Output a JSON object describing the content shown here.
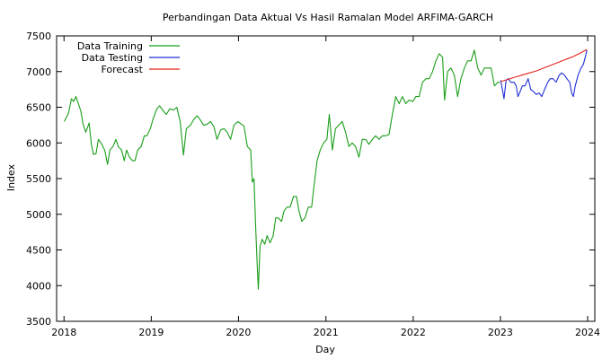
{
  "chart_data": {
    "type": "line",
    "title": "Perbandingan Data Aktual Vs Hasil Ramalan Model ARFIMA-GARCH",
    "xlabel": "Day",
    "ylabel": "Index",
    "xlim": [
      "2017-12-01",
      "2024-01-31"
    ],
    "ylim": [
      3500,
      7500
    ],
    "x_ticks": [
      "2018",
      "2019",
      "2020",
      "2021",
      "2022",
      "2023",
      "2024"
    ],
    "y_ticks": [
      "3500",
      "4000",
      "4500",
      "5000",
      "5500",
      "6000",
      "6500",
      "7000",
      "7500"
    ],
    "legend_position": "top-left",
    "grid": false,
    "series": [
      {
        "name": "Data Training",
        "color": "#1a9e1a",
        "points": [
          [
            "2018-01-02",
            6300
          ],
          [
            "2018-01-10",
            6350
          ],
          [
            "2018-01-20",
            6420
          ],
          [
            "2018-02-01",
            6620
          ],
          [
            "2018-02-10",
            6580
          ],
          [
            "2018-02-20",
            6650
          ],
          [
            "2018-03-01",
            6560
          ],
          [
            "2018-03-12",
            6450
          ],
          [
            "2018-03-22",
            6260
          ],
          [
            "2018-04-02",
            6150
          ],
          [
            "2018-04-16",
            6280
          ],
          [
            "2018-04-25",
            5990
          ],
          [
            "2018-05-04",
            5840
          ],
          [
            "2018-05-15",
            5850
          ],
          [
            "2018-05-25",
            6050
          ],
          [
            "2018-06-05",
            6000
          ],
          [
            "2018-06-20",
            5900
          ],
          [
            "2018-07-02",
            5700
          ],
          [
            "2018-07-12",
            5900
          ],
          [
            "2018-07-25",
            5950
          ],
          [
            "2018-08-06",
            6050
          ],
          [
            "2018-08-16",
            5950
          ],
          [
            "2018-08-30",
            5900
          ],
          [
            "2018-09-10",
            5750
          ],
          [
            "2018-09-20",
            5900
          ],
          [
            "2018-10-02",
            5800
          ],
          [
            "2018-10-15",
            5750
          ],
          [
            "2018-10-25",
            5750
          ],
          [
            "2018-11-05",
            5900
          ],
          [
            "2018-11-20",
            5950
          ],
          [
            "2018-12-03",
            6100
          ],
          [
            "2018-12-14",
            6100
          ],
          [
            "2018-12-28",
            6200
          ],
          [
            "2019-01-10",
            6350
          ],
          [
            "2019-01-25",
            6480
          ],
          [
            "2019-02-05",
            6520
          ],
          [
            "2019-02-20",
            6450
          ],
          [
            "2019-03-05",
            6400
          ],
          [
            "2019-03-20",
            6480
          ],
          [
            "2019-04-03",
            6460
          ],
          [
            "2019-04-18",
            6500
          ],
          [
            "2019-05-02",
            6300
          ],
          [
            "2019-05-16",
            5830
          ],
          [
            "2019-05-28",
            6200
          ],
          [
            "2019-06-14",
            6250
          ],
          [
            "2019-06-28",
            6330
          ],
          [
            "2019-07-12",
            6380
          ],
          [
            "2019-07-26",
            6320
          ],
          [
            "2019-08-08",
            6250
          ],
          [
            "2019-08-22",
            6260
          ],
          [
            "2019-09-06",
            6300
          ],
          [
            "2019-09-20",
            6230
          ],
          [
            "2019-10-03",
            6050
          ],
          [
            "2019-10-18",
            6180
          ],
          [
            "2019-11-01",
            6200
          ],
          [
            "2019-11-15",
            6150
          ],
          [
            "2019-11-29",
            6050
          ],
          [
            "2019-12-13",
            6250
          ],
          [
            "2019-12-30",
            6300
          ],
          [
            "2020-01-10",
            6270
          ],
          [
            "2020-01-24",
            6240
          ],
          [
            "2020-02-07",
            5950
          ],
          [
            "2020-02-21",
            5900
          ],
          [
            "2020-02-28",
            5450
          ],
          [
            "2020-03-06",
            5500
          ],
          [
            "2020-03-12",
            4900
          ],
          [
            "2020-03-19",
            4300
          ],
          [
            "2020-03-24",
            3950
          ],
          [
            "2020-03-31",
            4550
          ],
          [
            "2020-04-09",
            4650
          ],
          [
            "2020-04-20",
            4580
          ],
          [
            "2020-04-30",
            4700
          ],
          [
            "2020-05-12",
            4600
          ],
          [
            "2020-05-25",
            4700
          ],
          [
            "2020-06-05",
            4950
          ],
          [
            "2020-06-15",
            4950
          ],
          [
            "2020-06-29",
            4900
          ],
          [
            "2020-07-10",
            5050
          ],
          [
            "2020-07-22",
            5100
          ],
          [
            "2020-08-04",
            5100
          ],
          [
            "2020-08-18",
            5250
          ],
          [
            "2020-08-31",
            5250
          ],
          [
            "2020-09-10",
            5050
          ],
          [
            "2020-09-22",
            4900
          ],
          [
            "2020-10-05",
            4950
          ],
          [
            "2020-10-19",
            5100
          ],
          [
            "2020-11-02",
            5100
          ],
          [
            "2020-11-12",
            5400
          ],
          [
            "2020-11-25",
            5750
          ],
          [
            "2020-12-08",
            5900
          ],
          [
            "2020-12-22",
            6000
          ],
          [
            "2021-01-05",
            6050
          ],
          [
            "2021-01-15",
            6400
          ],
          [
            "2021-01-28",
            5900
          ],
          [
            "2021-02-10",
            6200
          ],
          [
            "2021-02-24",
            6250
          ],
          [
            "2021-03-10",
            6300
          ],
          [
            "2021-03-24",
            6150
          ],
          [
            "2021-04-07",
            5950
          ],
          [
            "2021-04-21",
            6000
          ],
          [
            "2021-05-05",
            5950
          ],
          [
            "2021-05-19",
            5800
          ],
          [
            "2021-06-02",
            6050
          ],
          [
            "2021-06-16",
            6050
          ],
          [
            "2021-06-30",
            5980
          ],
          [
            "2021-07-14",
            6050
          ],
          [
            "2021-07-28",
            6100
          ],
          [
            "2021-08-11",
            6050
          ],
          [
            "2021-08-25",
            6100
          ],
          [
            "2021-09-08",
            6100
          ],
          [
            "2021-09-22",
            6120
          ],
          [
            "2021-10-06",
            6400
          ],
          [
            "2021-10-20",
            6650
          ],
          [
            "2021-11-03",
            6550
          ],
          [
            "2021-11-17",
            6650
          ],
          [
            "2021-12-01",
            6550
          ],
          [
            "2021-12-15",
            6600
          ],
          [
            "2021-12-30",
            6580
          ],
          [
            "2022-01-12",
            6650
          ],
          [
            "2022-01-26",
            6650
          ],
          [
            "2022-02-09",
            6850
          ],
          [
            "2022-02-23",
            6900
          ],
          [
            "2022-03-09",
            6900
          ],
          [
            "2022-03-23",
            7000
          ],
          [
            "2022-04-06",
            7150
          ],
          [
            "2022-04-20",
            7250
          ],
          [
            "2022-05-04",
            7200
          ],
          [
            "2022-05-12",
            6600
          ],
          [
            "2022-05-25",
            7000
          ],
          [
            "2022-06-08",
            7050
          ],
          [
            "2022-06-22",
            6950
          ],
          [
            "2022-07-06",
            6650
          ],
          [
            "2022-07-20",
            6900
          ],
          [
            "2022-08-03",
            7050
          ],
          [
            "2022-08-17",
            7150
          ],
          [
            "2022-08-31",
            7150
          ],
          [
            "2022-09-14",
            7300
          ],
          [
            "2022-09-28",
            7050
          ],
          [
            "2022-10-12",
            6950
          ],
          [
            "2022-10-26",
            7050
          ],
          [
            "2022-11-09",
            7050
          ],
          [
            "2022-11-23",
            7050
          ],
          [
            "2022-12-07",
            6800
          ],
          [
            "2022-12-21",
            6850
          ],
          [
            "2022-12-30",
            6850
          ]
        ]
      },
      {
        "name": "Data Testing",
        "color": "#1f2fd6",
        "points": [
          [
            "2023-01-02",
            6880
          ],
          [
            "2023-01-09",
            6750
          ],
          [
            "2023-01-16",
            6620
          ],
          [
            "2023-01-25",
            6880
          ],
          [
            "2023-02-03",
            6900
          ],
          [
            "2023-02-13",
            6850
          ],
          [
            "2023-02-27",
            6850
          ],
          [
            "2023-03-08",
            6800
          ],
          [
            "2023-03-15",
            6650
          ],
          [
            "2023-03-22",
            6700
          ],
          [
            "2023-04-03",
            6800
          ],
          [
            "2023-04-14",
            6800
          ],
          [
            "2023-04-27",
            6900
          ],
          [
            "2023-05-08",
            6750
          ],
          [
            "2023-05-19",
            6720
          ],
          [
            "2023-05-31",
            6680
          ],
          [
            "2023-06-12",
            6700
          ],
          [
            "2023-06-23",
            6650
          ],
          [
            "2023-07-05",
            6750
          ],
          [
            "2023-07-18",
            6850
          ],
          [
            "2023-07-28",
            6900
          ],
          [
            "2023-08-09",
            6900
          ],
          [
            "2023-08-22",
            6850
          ],
          [
            "2023-09-04",
            6950
          ],
          [
            "2023-09-14",
            6980
          ],
          [
            "2023-09-26",
            6950
          ],
          [
            "2023-10-06",
            6900
          ],
          [
            "2023-10-18",
            6850
          ],
          [
            "2023-10-26",
            6700
          ],
          [
            "2023-11-02",
            6650
          ],
          [
            "2023-11-10",
            6800
          ],
          [
            "2023-11-22",
            6950
          ],
          [
            "2023-12-04",
            7050
          ],
          [
            "2023-12-14",
            7100
          ],
          [
            "2023-12-22",
            7200
          ],
          [
            "2023-12-29",
            7300
          ]
        ]
      },
      {
        "name": "Forecast",
        "color": "#e3261f",
        "points": [
          [
            "2023-01-02",
            6860
          ],
          [
            "2023-02-01",
            6890
          ],
          [
            "2023-03-01",
            6920
          ],
          [
            "2023-04-01",
            6950
          ],
          [
            "2023-05-01",
            6980
          ],
          [
            "2023-06-01",
            7010
          ],
          [
            "2023-07-01",
            7050
          ],
          [
            "2023-08-01",
            7090
          ],
          [
            "2023-09-01",
            7130
          ],
          [
            "2023-10-01",
            7170
          ],
          [
            "2023-11-01",
            7210
          ],
          [
            "2023-12-01",
            7260
          ],
          [
            "2023-12-29",
            7310
          ]
        ]
      }
    ]
  }
}
